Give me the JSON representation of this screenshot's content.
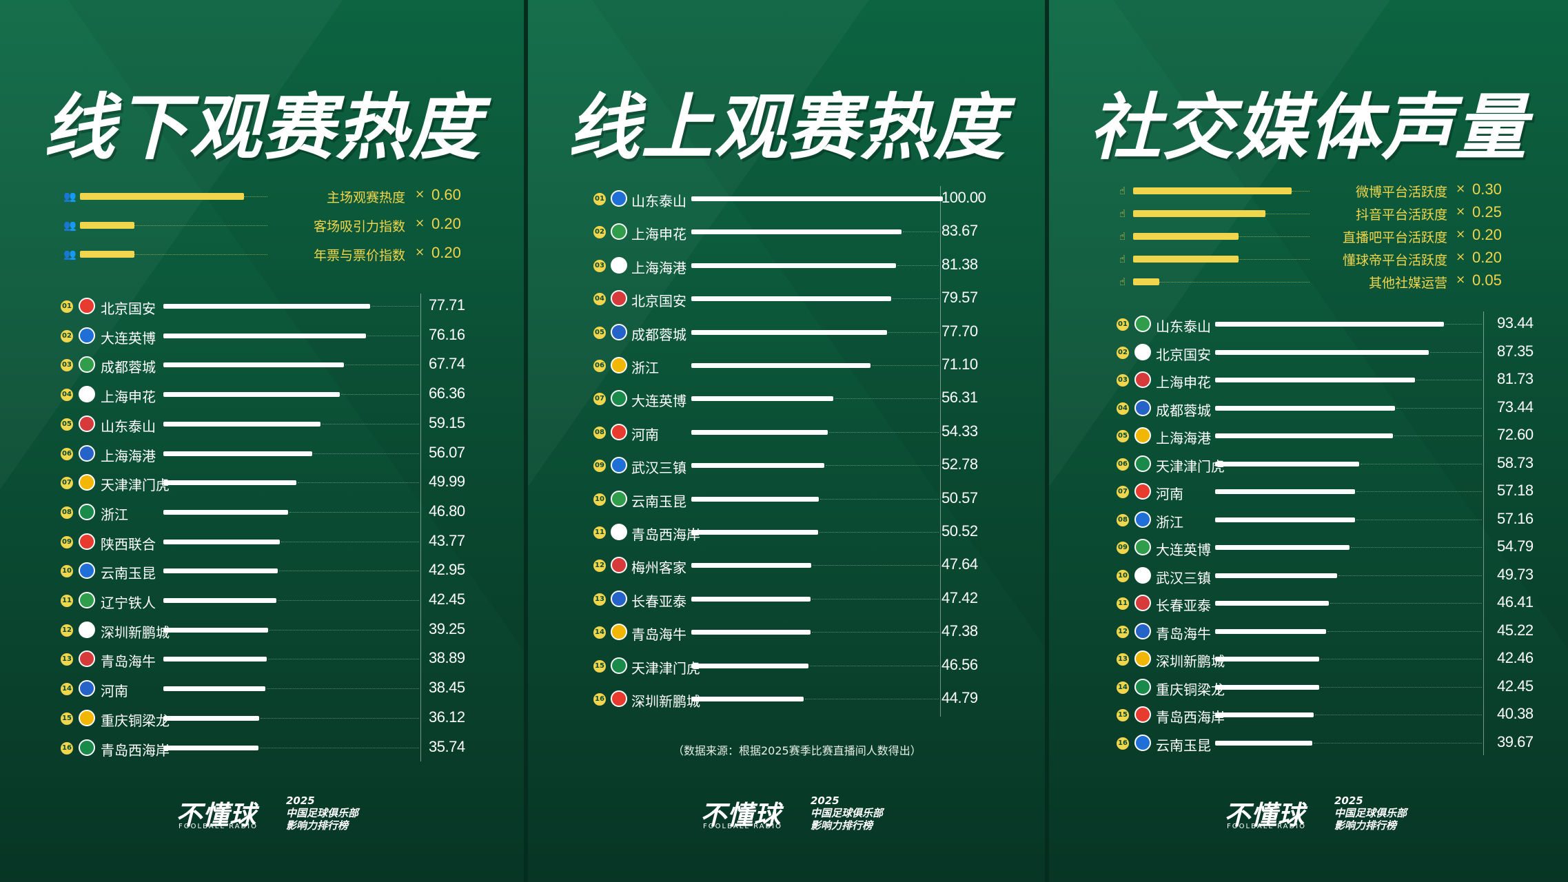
{
  "chart_data": [
    {
      "type": "bar",
      "title": "线下观赛热度",
      "factors": [
        {
          "label": "主场观赛热度",
          "weight": "0.60"
        },
        {
          "label": "客场吸引力指数",
          "weight": "0.20"
        },
        {
          "label": "年票与票价指数",
          "weight": "0.20"
        }
      ],
      "ranks": [
        "01",
        "02",
        "03",
        "04",
        "05",
        "06",
        "07",
        "08",
        "09",
        "10",
        "11",
        "12",
        "13",
        "14",
        "15",
        "16"
      ],
      "categories": [
        "北京国安",
        "大连英博",
        "成都蓉城",
        "上海申花",
        "山东泰山",
        "上海海港",
        "天津津门虎",
        "浙江",
        "陕西联合",
        "云南玉昆",
        "辽宁铁人",
        "深圳新鹏城",
        "青岛海牛",
        "河南",
        "重庆铜梁龙",
        "青岛西海岸"
      ],
      "values": [
        77.71,
        76.16,
        67.74,
        66.36,
        59.15,
        56.07,
        49.99,
        46.8,
        43.77,
        42.95,
        42.45,
        39.25,
        38.89,
        38.45,
        36.12,
        35.74
      ],
      "labels": [
        "77.71",
        "76.16",
        "67.74",
        "66.36",
        "59.15",
        "56.07",
        "49.99",
        "46.80",
        "43.77",
        "42.95",
        "42.45",
        "39.25",
        "38.89",
        "38.45",
        "36.12",
        "35.74"
      ]
    },
    {
      "type": "bar",
      "title": "线上观赛热度",
      "ranks": [
        "01",
        "02",
        "03",
        "04",
        "05",
        "06",
        "07",
        "08",
        "09",
        "10",
        "11",
        "12",
        "13",
        "14",
        "15",
        "16"
      ],
      "categories": [
        "山东泰山",
        "上海申花",
        "上海海港",
        "北京国安",
        "成都蓉城",
        "浙江",
        "大连英博",
        "河南",
        "武汉三镇",
        "云南玉昆",
        "青岛西海岸",
        "梅州客家",
        "长春亚泰",
        "青岛海牛",
        "天津津门虎",
        "深圳新鹏城"
      ],
      "values": [
        100.0,
        83.67,
        81.38,
        79.57,
        77.7,
        71.1,
        56.31,
        54.33,
        52.78,
        50.57,
        50.52,
        47.64,
        47.42,
        47.38,
        46.56,
        44.79
      ],
      "labels": [
        "100.00",
        "83.67",
        "81.38",
        "79.57",
        "77.70",
        "71.10",
        "56.31",
        "54.33",
        "52.78",
        "50.57",
        "50.52",
        "47.64",
        "47.42",
        "47.38",
        "46.56",
        "44.79"
      ],
      "note": "（数据来源：根据2025赛季比赛直播间人数得出）"
    },
    {
      "type": "bar",
      "title": "社交媒体声量",
      "factors": [
        {
          "label": "微博平台活跃度",
          "weight": "0.30"
        },
        {
          "label": "抖音平台活跃度",
          "weight": "0.25"
        },
        {
          "label": "直播吧平台活跃度",
          "weight": "0.20"
        },
        {
          "label": "懂球帝平台活跃度",
          "weight": "0.20"
        },
        {
          "label": "其他社媒运营",
          "weight": "0.05"
        }
      ],
      "ranks": [
        "01",
        "02",
        "03",
        "04",
        "05",
        "06",
        "07",
        "08",
        "09",
        "10",
        "11",
        "12",
        "13",
        "14",
        "15",
        "16"
      ],
      "categories": [
        "山东泰山",
        "北京国安",
        "上海申花",
        "成都蓉城",
        "上海海港",
        "天津津门虎",
        "河南",
        "浙江",
        "大连英博",
        "武汉三镇",
        "长春亚泰",
        "青岛海牛",
        "深圳新鹏城",
        "重庆铜梁龙",
        "青岛西海岸",
        "云南玉昆"
      ],
      "values": [
        93.44,
        87.35,
        81.73,
        73.44,
        72.6,
        58.73,
        57.18,
        57.16,
        54.79,
        49.73,
        46.41,
        45.22,
        42.46,
        42.45,
        40.38,
        39.67
      ],
      "labels": [
        "93.44",
        "87.35",
        "81.73",
        "73.44",
        "72.60",
        "58.73",
        "57.18",
        "57.16",
        "54.79",
        "49.73",
        "46.41",
        "45.22",
        "42.46",
        "42.45",
        "40.38",
        "39.67"
      ]
    }
  ],
  "ui": {
    "times": "×",
    "brand": "不懂球",
    "brand_sub": "FOOLBALL RADIO",
    "year": "2025",
    "footer_line1": "中国足球俱乐部",
    "footer_line2": "影响力排行榜",
    "colors": {
      "accent": "#f1d54c",
      "bar": "#ffffff",
      "background": "#0b4a32"
    }
  }
}
